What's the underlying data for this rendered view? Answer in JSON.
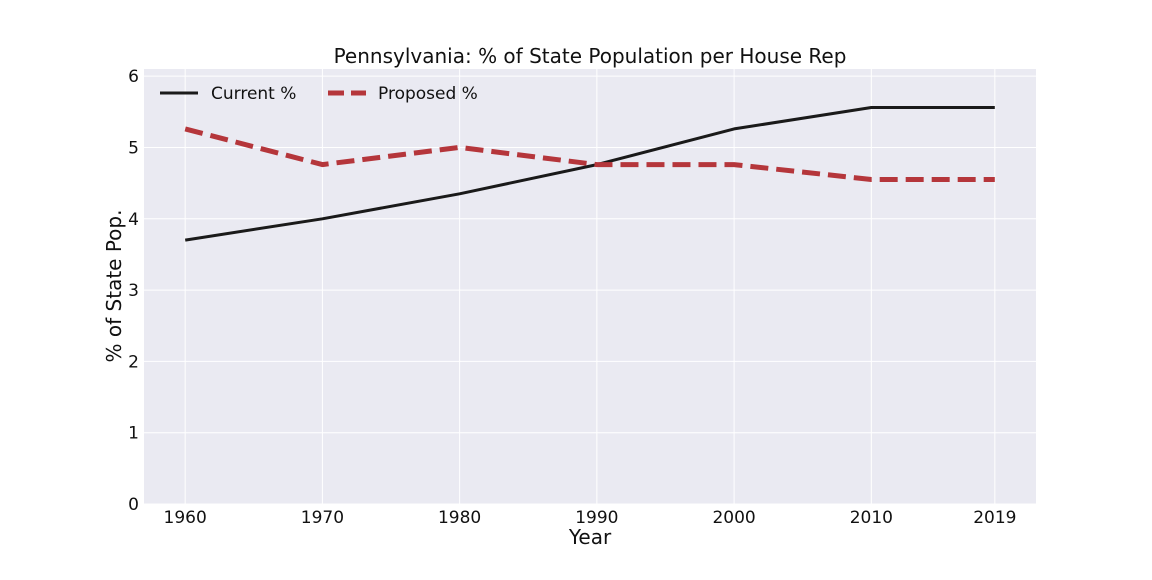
{
  "chart_data": {
    "type": "line",
    "title": "Pennsylvania: % of State Population per House Rep",
    "xlabel": "Year",
    "ylabel": "% of State Pop.",
    "x": [
      1960,
      1970,
      1980,
      1990,
      2000,
      2010,
      2019
    ],
    "x_tick_labels": [
      "1960",
      "1970",
      "1980",
      "1990",
      "2000",
      "2010",
      "2019"
    ],
    "y_ticks": [
      0,
      1,
      2,
      3,
      4,
      5,
      6
    ],
    "y_tick_labels": [
      "0",
      "1",
      "2",
      "3",
      "4",
      "5",
      "6"
    ],
    "xlim": [
      1957,
      2022
    ],
    "ylim": [
      0,
      6.1
    ],
    "grid": true,
    "legend_position": "top-left",
    "series": [
      {
        "name": "Current %",
        "values": [
          3.7,
          4.0,
          4.35,
          4.76,
          5.26,
          5.56,
          5.56
        ],
        "color": "#1a1a1a",
        "style": "solid"
      },
      {
        "name": "Proposed %",
        "values": [
          5.26,
          4.76,
          5.0,
          4.76,
          4.76,
          4.55,
          4.55
        ],
        "color": "#b5363b",
        "style": "dashed"
      }
    ],
    "colors": {
      "plot_background": "#eaeaf2",
      "grid": "#ffffff"
    }
  }
}
